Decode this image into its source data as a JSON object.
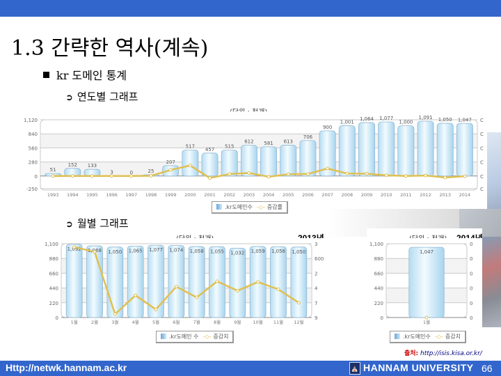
{
  "slide": {
    "title": "1.3 간략한 역사(계속)",
    "bullet_main": "kr 도메인 통계",
    "bullet_yearly": "연도별 그래프",
    "bullet_monthly": "월별 그래프",
    "arrow_icon": "➲",
    "source_prefix": "출처:",
    "source_url": "http://isis.kisa.or.kr/",
    "footer_url": "Http://netwk.hannam.ac.kr",
    "university": "HANNAM UNIVERSITY",
    "page_number": "66",
    "colors": {
      "header_bar": "#3366cc",
      "bar_fill": "#cfe9f8",
      "bar_edge": "#8fb8d4",
      "line": "#e0c050"
    }
  },
  "charts": {
    "yearly": {
      "unit_label": "(단위 : 천개)",
      "legend_bar": ".kr도메인수",
      "legend_line": "증감률",
      "scroll_left": "<",
      "scroll_right": ">"
    },
    "monthly_2013": {
      "unit_label": "(단위 : 천개)",
      "year_label": "2013년",
      "legend_bar": ".kr도메인 수",
      "legend_line": "증감치"
    },
    "monthly_2014": {
      "unit_label": "(단위 : 천개)",
      "year_label": "2014년",
      "legend_bar": ".kr도메인수",
      "legend_line": "증감치"
    }
  },
  "chart_data": [
    {
      "type": "bar",
      "title": "연도별 그래프",
      "subtitle": "(단위 : 천개)",
      "categories": [
        "1993",
        "1994",
        "1995",
        "1996",
        "1997",
        "1998",
        "1999",
        "2000",
        "2001",
        "2002",
        "2003",
        "2004",
        "2005",
        "2006",
        "2007",
        "2008",
        "2009",
        "2010",
        "2011",
        "2012",
        "2013",
        "2014"
      ],
      "series": [
        {
          "name": ".kr도메인수",
          "type": "bar",
          "values": [
            51,
            152,
            133,
            3,
            0,
            25,
            207,
            517,
            457,
            515,
            612,
            581,
            613,
            706,
            900,
            1001,
            1064,
            1077,
            1000,
            1091,
            1050,
            1047
          ]
        },
        {
          "name": "증감률",
          "type": "line",
          "values": [
            0,
            0,
            0,
            0,
            0,
            5,
            120,
            210,
            -40,
            40,
            60,
            -15,
            35,
            40,
            150,
            50,
            45,
            15,
            0,
            10,
            -30,
            -5
          ]
        }
      ],
      "yticks_left": [
        -250,
        0,
        280,
        560,
        840,
        1120
      ],
      "ylim": [
        -280,
        1120
      ],
      "xlabel": "",
      "ylabel": "",
      "legend_position": "bottom",
      "grid": true
    },
    {
      "type": "bar",
      "title": "월별 그래프 2013년",
      "subtitle": "(단위 : 천개)",
      "categories": [
        "1월",
        "2월",
        "3월",
        "4월",
        "5월",
        "6월",
        "7월",
        "8월",
        "9월",
        "10월",
        "11월",
        "12월"
      ],
      "series": [
        {
          "name": ".kr도메인 수",
          "type": "bar",
          "values": [
            1092,
            1068,
            1050,
            1065,
            1077,
            1074,
            1058,
            1055,
            1032,
            1059,
            1056,
            1050
          ]
        },
        {
          "name": "증감치",
          "type": "line",
          "values": [
            1050,
            980,
            50,
            330,
            120,
            460,
            300,
            540,
            400,
            530,
            420,
            220
          ]
        }
      ],
      "yticks_left": [
        0,
        220,
        440,
        660,
        880,
        1100
      ],
      "yticks_right": [
        9,
        7,
        4,
        2,
        600,
        3
      ],
      "ylim": [
        0,
        1100
      ],
      "legend_position": "bottom",
      "grid": true
    },
    {
      "type": "bar",
      "title": "월별 그래프 2014년",
      "subtitle": "(단위 : 천개)",
      "categories": [
        "1월"
      ],
      "series": [
        {
          "name": ".kr도메인수",
          "type": "bar",
          "values": [
            1047
          ]
        },
        {
          "name": "증감치",
          "type": "line",
          "values": [
            0
          ]
        }
      ],
      "yticks_left": [
        0,
        220,
        440,
        660,
        880,
        1100
      ],
      "yticks_right": [
        0,
        0,
        0,
        0,
        0,
        0
      ],
      "ylim": [
        0,
        1100
      ],
      "legend_position": "bottom",
      "grid": true
    }
  ]
}
